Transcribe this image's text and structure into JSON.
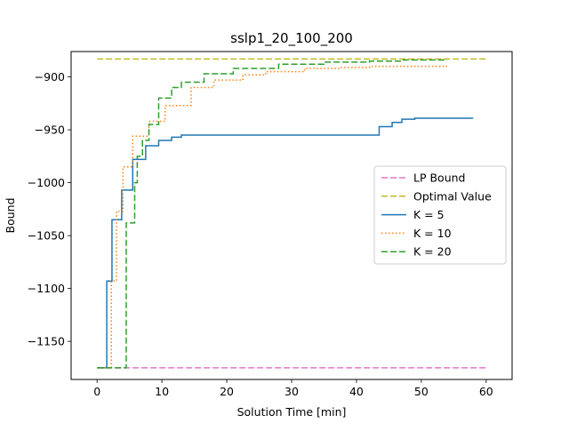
{
  "chart_data": {
    "type": "line",
    "title": "sslp1_20_100_200",
    "xlabel": "Solution Time [min]",
    "ylabel": "Bound",
    "xlim": [
      -4,
      64
    ],
    "ylim": [
      -1186,
      -876
    ],
    "xticks": [
      0,
      10,
      20,
      30,
      40,
      50,
      60
    ],
    "xtick_labels": [
      "0",
      "10",
      "20",
      "30",
      "40",
      "50",
      "60"
    ],
    "yticks": [
      -1150,
      -1100,
      -1050,
      -1000,
      -950,
      -900
    ],
    "ytick_labels": [
      "−1150",
      "−1100",
      "−1050",
      "−1000",
      "−950",
      "−900"
    ],
    "grid": false,
    "legend_position": "center-right",
    "series": [
      {
        "name": "LP Bound",
        "color": "#e377c2",
        "style": "dashed",
        "x": [
          0,
          60
        ],
        "y": [
          -1175,
          -1175
        ]
      },
      {
        "name": "Optimal Value",
        "color": "#bcbd22",
        "style": "dashed",
        "x": [
          0,
          60
        ],
        "y": [
          -883,
          -883
        ]
      },
      {
        "name": "K = 5",
        "color": "#1f77b4",
        "style": "solid",
        "step": true,
        "x": [
          0,
          1.5,
          2.3,
          3.8,
          5.5,
          7.5,
          9.5,
          11.5,
          13,
          43.5,
          45.5,
          47,
          49,
          58
        ],
        "y": [
          -1175,
          -1093,
          -1035,
          -1007,
          -978,
          -965,
          -960,
          -957,
          -955,
          -947,
          -943,
          -940,
          -939,
          -939
        ]
      },
      {
        "name": "K = 10",
        "color": "#ff7f0e",
        "style": "dotted",
        "step": true,
        "x": [
          0,
          2.2,
          3,
          4,
          5.5,
          8,
          10.5,
          14.5,
          18,
          22.5,
          26,
          32,
          37.5,
          42,
          54
        ],
        "y": [
          -1175,
          -1093,
          -1027,
          -985,
          -956,
          -942,
          -927,
          -910,
          -903,
          -898,
          -895,
          -892,
          -891,
          -890,
          -890
        ]
      },
      {
        "name": "K = 20",
        "color": "#2ca02c",
        "style": "dashed",
        "step": true,
        "x": [
          0,
          4.5,
          5.8,
          6.2,
          7,
          8,
          9.5,
          11.5,
          13,
          16.5,
          21,
          28,
          35,
          42,
          47,
          54
        ],
        "y": [
          -1175,
          -1038,
          -1000,
          -975,
          -960,
          -945,
          -920,
          -910,
          -905,
          -897,
          -892,
          -888,
          -886,
          -885,
          -884,
          -884
        ]
      }
    ]
  }
}
